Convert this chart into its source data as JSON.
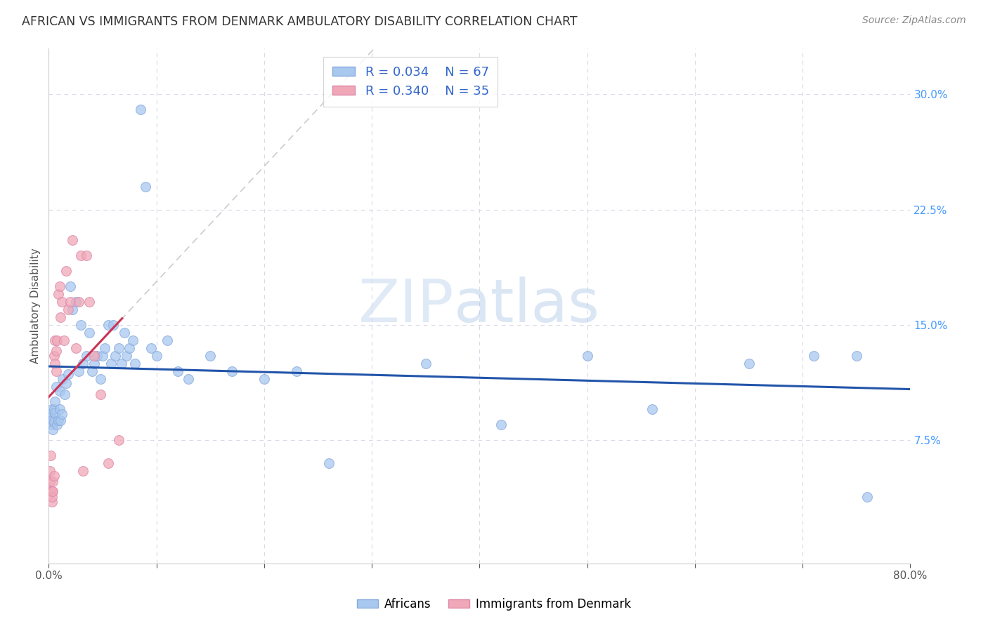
{
  "title": "AFRICAN VS IMMIGRANTS FROM DENMARK AMBULATORY DISABILITY CORRELATION CHART",
  "source": "Source: ZipAtlas.com",
  "ylabel": "Ambulatory Disability",
  "xlim": [
    0.0,
    0.8
  ],
  "ylim": [
    -0.005,
    0.33
  ],
  "yticks_right": [
    0.075,
    0.15,
    0.225,
    0.3
  ],
  "ytick_labels_right": [
    "7.5%",
    "15.0%",
    "22.5%",
    "30.0%"
  ],
  "blue_R": 0.034,
  "blue_N": 67,
  "pink_R": 0.34,
  "pink_N": 35,
  "background_color": "#ffffff",
  "grid_color": "#d8d8e8",
  "blue_color": "#a8c8f0",
  "pink_color": "#f0a8b8",
  "blue_line_color": "#2255aa",
  "pink_line_color": "#cc3355",
  "watermark_color": "#c8daf0",
  "africans_x": [
    0.001,
    0.002,
    0.002,
    0.003,
    0.003,
    0.004,
    0.004,
    0.005,
    0.005,
    0.006,
    0.006,
    0.007,
    0.008,
    0.009,
    0.01,
    0.01,
    0.011,
    0.012,
    0.013,
    0.015,
    0.016,
    0.018,
    0.02,
    0.022,
    0.025,
    0.028,
    0.03,
    0.032,
    0.035,
    0.038,
    0.04,
    0.042,
    0.045,
    0.048,
    0.05,
    0.052,
    0.055,
    0.058,
    0.06,
    0.062,
    0.065,
    0.068,
    0.07,
    0.072,
    0.075,
    0.078,
    0.08,
    0.085,
    0.09,
    0.095,
    0.1,
    0.11,
    0.12,
    0.13,
    0.15,
    0.17,
    0.2,
    0.23,
    0.26,
    0.35,
    0.42,
    0.5,
    0.56,
    0.65,
    0.71,
    0.75,
    0.76
  ],
  "africans_y": [
    0.09,
    0.092,
    0.088,
    0.085,
    0.095,
    0.088,
    0.082,
    0.095,
    0.087,
    0.1,
    0.093,
    0.11,
    0.085,
    0.088,
    0.095,
    0.107,
    0.088,
    0.092,
    0.115,
    0.105,
    0.112,
    0.118,
    0.175,
    0.16,
    0.165,
    0.12,
    0.15,
    0.125,
    0.13,
    0.145,
    0.12,
    0.125,
    0.13,
    0.115,
    0.13,
    0.135,
    0.15,
    0.125,
    0.15,
    0.13,
    0.135,
    0.125,
    0.145,
    0.13,
    0.135,
    0.14,
    0.125,
    0.29,
    0.24,
    0.135,
    0.13,
    0.14,
    0.12,
    0.115,
    0.13,
    0.12,
    0.115,
    0.12,
    0.06,
    0.125,
    0.085,
    0.13,
    0.095,
    0.125,
    0.13,
    0.13,
    0.038
  ],
  "denmark_x": [
    0.001,
    0.001,
    0.002,
    0.002,
    0.003,
    0.003,
    0.003,
    0.004,
    0.004,
    0.005,
    0.005,
    0.006,
    0.006,
    0.007,
    0.007,
    0.008,
    0.009,
    0.01,
    0.011,
    0.012,
    0.014,
    0.016,
    0.018,
    0.02,
    0.022,
    0.025,
    0.028,
    0.03,
    0.032,
    0.035,
    0.038,
    0.042,
    0.048,
    0.055,
    0.065
  ],
  "denmark_y": [
    0.055,
    0.048,
    0.065,
    0.042,
    0.042,
    0.035,
    0.038,
    0.048,
    0.042,
    0.052,
    0.13,
    0.14,
    0.125,
    0.133,
    0.12,
    0.14,
    0.17,
    0.175,
    0.155,
    0.165,
    0.14,
    0.185,
    0.16,
    0.165,
    0.205,
    0.135,
    0.165,
    0.195,
    0.055,
    0.195,
    0.165,
    0.13,
    0.105,
    0.06,
    0.075
  ]
}
